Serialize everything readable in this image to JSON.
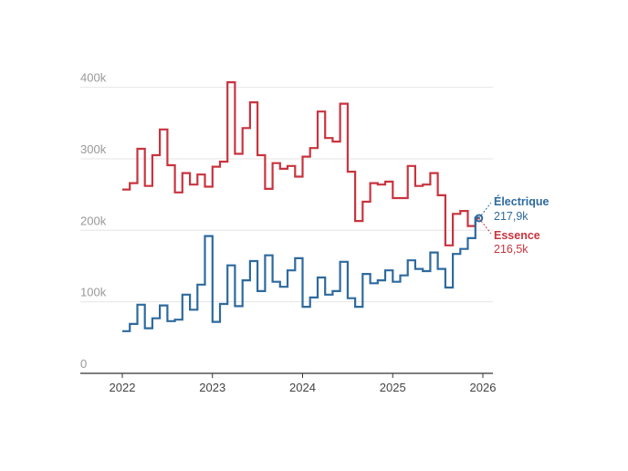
{
  "chart_data": {
    "type": "line",
    "step": true,
    "title": "",
    "xlabel": "",
    "ylabel": "",
    "x_start": "2022-01",
    "x_ticks": [
      "2022",
      "2023",
      "2024",
      "2025",
      "2026"
    ],
    "y_ticks": [
      "0",
      "100k",
      "200k",
      "300k",
      "400k"
    ],
    "y_tick_values": [
      0,
      100,
      200,
      300,
      400
    ],
    "ylim": [
      0,
      420
    ],
    "grid": true,
    "series": [
      {
        "name": "Essence",
        "color": "#c8343f",
        "end_label": "Essence",
        "end_value_label": "216,5k",
        "values": [
          257,
          266,
          314,
          262,
          305,
          341,
          291,
          253,
          280,
          264,
          278,
          261,
          289,
          296,
          407,
          307,
          343,
          379,
          305,
          258,
          294,
          286,
          290,
          275,
          303,
          315,
          366,
          329,
          324,
          377,
          282,
          213,
          240,
          266,
          264,
          268,
          245,
          245,
          290,
          262,
          264,
          280,
          249,
          179,
          223,
          227,
          206,
          216.5
        ]
      },
      {
        "name": "Électrique",
        "color": "#2e6a9e",
        "end_label": "Électrique",
        "end_value_label": "217,9k",
        "values": [
          59,
          69,
          96,
          63,
          77,
          95,
          73,
          75,
          110,
          89,
          124,
          192,
          72,
          97,
          151,
          94,
          130,
          157,
          115,
          165,
          128,
          121,
          144,
          161,
          93,
          106,
          134,
          110,
          115,
          156,
          105,
          93,
          139,
          126,
          130,
          144,
          128,
          137,
          158,
          146,
          143,
          169,
          146,
          120,
          167,
          174,
          189,
          217.9
        ]
      }
    ]
  }
}
